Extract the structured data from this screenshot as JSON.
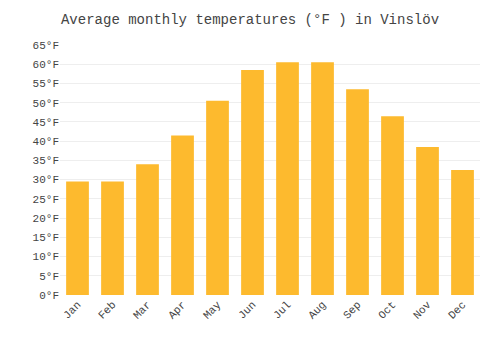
{
  "chart_data": {
    "type": "bar",
    "title": "Average monthly temperatures (°F ) in Vinslöv",
    "categories": [
      "Jan",
      "Feb",
      "Mar",
      "Apr",
      "May",
      "Jun",
      "Jul",
      "Aug",
      "Sep",
      "Oct",
      "Nov",
      "Dec"
    ],
    "values": [
      29.5,
      29.5,
      34.0,
      41.5,
      50.5,
      58.5,
      60.5,
      60.5,
      53.5,
      46.5,
      38.5,
      32.5
    ],
    "color": "#FDBA2E",
    "ylim": [
      0,
      65
    ],
    "yticks": [
      {
        "value": 0,
        "label": "0°F"
      },
      {
        "value": 5,
        "label": "5°F"
      },
      {
        "value": 10,
        "label": "10°F"
      },
      {
        "value": 15,
        "label": "15°F"
      },
      {
        "value": 20,
        "label": "20°F"
      },
      {
        "value": 25,
        "label": "25°F"
      },
      {
        "value": 30,
        "label": "30°F"
      },
      {
        "value": 35,
        "label": "35°F"
      },
      {
        "value": 40,
        "label": "40°F"
      },
      {
        "value": 45,
        "label": "45°F"
      },
      {
        "value": 50,
        "label": "50°F"
      },
      {
        "value": 55,
        "label": "55°F"
      },
      {
        "value": 60,
        "label": "60°F"
      },
      {
        "value": 65,
        "label": "65°F"
      }
    ],
    "grid": true
  }
}
